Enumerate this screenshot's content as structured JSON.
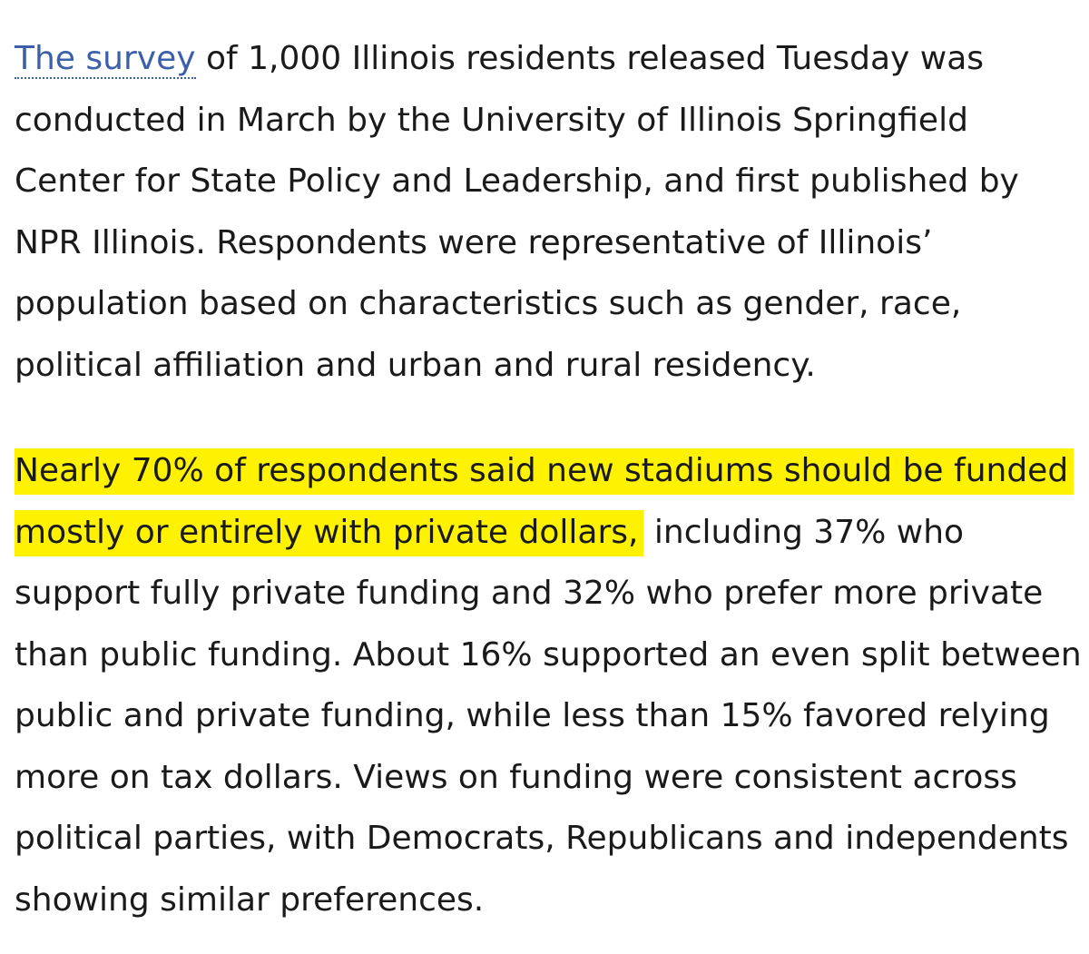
{
  "paragraph_1": {
    "link_text": "The survey",
    "rest": " of 1,000 Illinois residents released Tuesday was conducted in March by the University of Illinois Springfield Center for State Policy and Leadership, and first published by NPR Illinois. Respondents were representative of Illinois’ population based on characteristics such as gender, race, political affiliation and urban and rural residency."
  },
  "paragraph_2": {
    "highlighted": "Nearly 70% of respondents said new stadiums should be funded mostly or entirely with private dollars,",
    "rest": " including 37% who support fully private funding and 32% who prefer more private than public funding. About 16% supported an even split between public and private funding, while less than 15% favored relying more on tax dollars. Views on funding were consistent across political parties, with Democrats, Republicans and independents showing similar preferences."
  },
  "colors": {
    "link": "#3b5fa8",
    "highlight": "#fff200",
    "text": "#1a1a1a"
  }
}
